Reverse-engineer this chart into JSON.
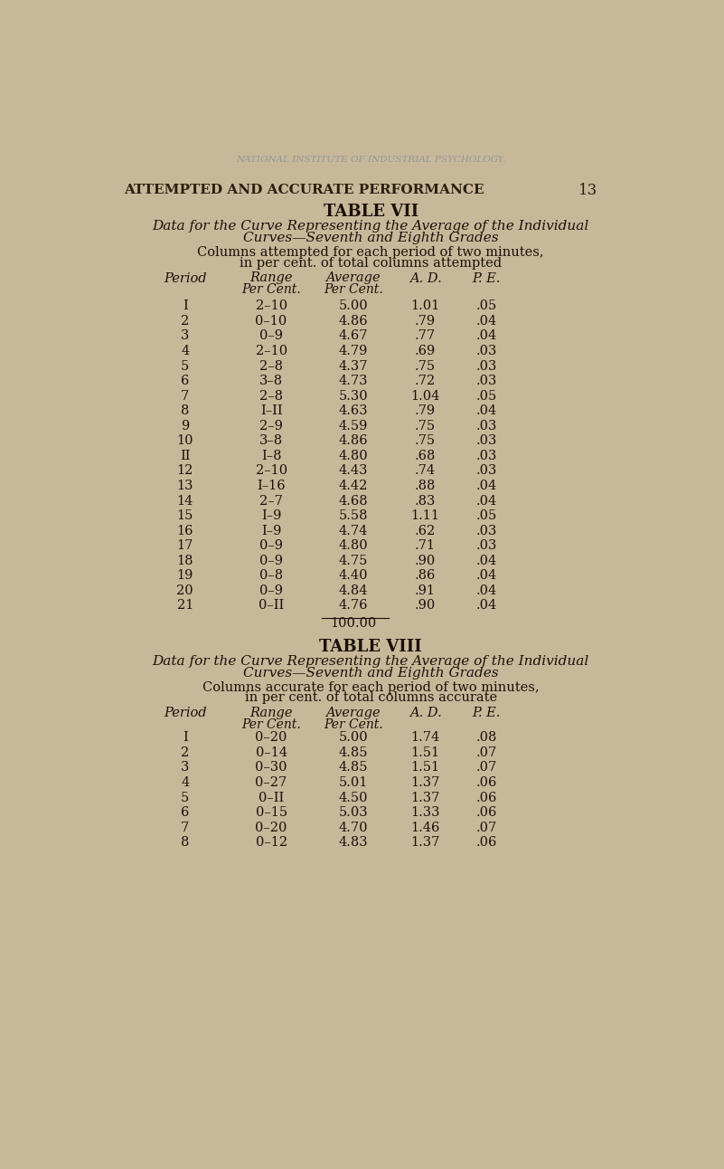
{
  "bg_color": "#c8b89a",
  "page_header": "ATTEMPTED AND ACCURATE PERFORMANCE",
  "page_number": "13",
  "watermark": "NATIONAL INSTITUTE OF INDUSTRIAL PSYCHOLOGY.",
  "table7_title": "TABLE VII",
  "table7_subtitle1": "Data for the Curve Representing the Average of the Individual",
  "table7_subtitle2": "Curves—Seventh and Eighth Grades",
  "table7_desc1": "Columns attempted for each period of two minutes,",
  "table7_desc2": "in per cent. of total columns attempted",
  "table7_col_headers": [
    "Period",
    "Range",
    "Average",
    "A. D.",
    "P. E."
  ],
  "table7_col_subheaders": [
    "",
    "Per Cent.",
    "Per Cent.",
    "",
    ""
  ],
  "table7_rows": [
    [
      "I",
      "2–10",
      "5.00",
      "1.01",
      ".05"
    ],
    [
      "2",
      "0–10",
      "4.86",
      ".79",
      ".04"
    ],
    [
      "3",
      "0–9",
      "4.67",
      ".77",
      ".04"
    ],
    [
      "4",
      "2–10",
      "4.79",
      ".69",
      ".03"
    ],
    [
      "5",
      "2–8",
      "4.37",
      ".75",
      ".03"
    ],
    [
      "6",
      "3–8",
      "4.73",
      ".72",
      ".03"
    ],
    [
      "7",
      "2–8",
      "5.30",
      "1.04",
      ".05"
    ],
    [
      "8",
      "I–II",
      "4.63",
      ".79",
      ".04"
    ],
    [
      "9",
      "2–9",
      "4.59",
      ".75",
      ".03"
    ],
    [
      "10",
      "3–8",
      "4.86",
      ".75",
      ".03"
    ],
    [
      "II",
      "I–8",
      "4.80",
      ".68",
      ".03"
    ],
    [
      "12",
      "2–10",
      "4.43",
      ".74",
      ".03"
    ],
    [
      "13",
      "I–16",
      "4.42",
      ".88",
      ".04"
    ],
    [
      "14",
      "2–7",
      "4.68",
      ".83",
      ".04"
    ],
    [
      "15",
      "I–9",
      "5.58",
      "1.11",
      ".05"
    ],
    [
      "16",
      "I–9",
      "4.74",
      ".62",
      ".03"
    ],
    [
      "17",
      "0–9",
      "4.80",
      ".71",
      ".03"
    ],
    [
      "18",
      "0–9",
      "4.75",
      ".90",
      ".04"
    ],
    [
      "19",
      "0–8",
      "4.40",
      ".86",
      ".04"
    ],
    [
      "20",
      "0–9",
      "4.84",
      ".91",
      ".04"
    ],
    [
      "21",
      "0–II",
      "4.76",
      ".90",
      ".04"
    ]
  ],
  "table7_total": "100.00",
  "table8_title": "TABLE VIII",
  "table8_subtitle1": "Data for the Curve Representing the Average of the Individual",
  "table8_subtitle2": "Curves—Seventh and Eighth Grades",
  "table8_desc1": "Columns accurate for each period of two minutes,",
  "table8_desc2": "in per cent. of total columns accurate",
  "table8_col_headers": [
    "Period",
    "Range",
    "Average",
    "A. D.",
    "P. E."
  ],
  "table8_col_subheaders": [
    "",
    "Per Cent.",
    "Per Cent.",
    "",
    ""
  ],
  "table8_rows": [
    [
      "I",
      "0–20",
      "5.00",
      "1.74",
      ".08"
    ],
    [
      "2",
      "0–14",
      "4.85",
      "1.51",
      ".07"
    ],
    [
      "3",
      "0–30",
      "4.85",
      "1.51",
      ".07"
    ],
    [
      "4",
      "0–27",
      "5.01",
      "1.37",
      ".06"
    ],
    [
      "5",
      "0–II",
      "4.50",
      "1.37",
      ".06"
    ],
    [
      "6",
      "0–15",
      "5.03",
      "1.33",
      ".06"
    ],
    [
      "7",
      "0–20",
      "4.70",
      "1.46",
      ".07"
    ],
    [
      "8",
      "0–12",
      "4.83",
      "1.37",
      ".06"
    ]
  ]
}
